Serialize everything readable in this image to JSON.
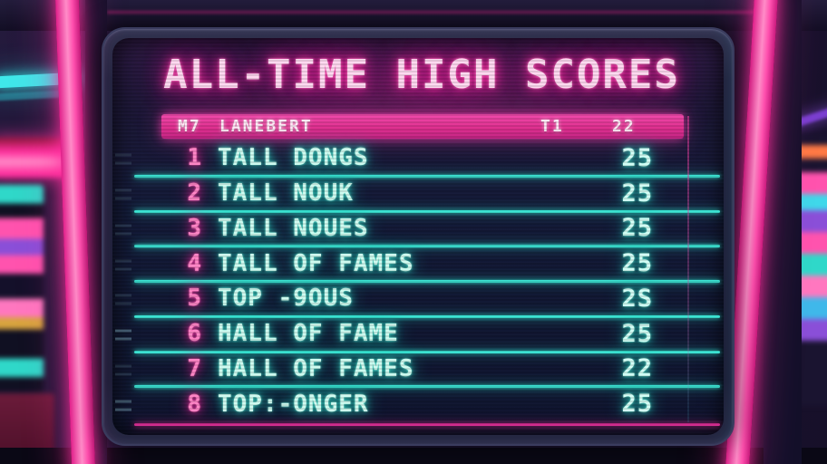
{
  "screen": {
    "title": "ALL-TIME HIGH SCORES",
    "header": {
      "rank_label": "M7",
      "name_label": "LANEBERT",
      "tier_label": "T1",
      "score_label": "22"
    },
    "rows": [
      {
        "rank": "1",
        "name": "TALL DONGS",
        "score": "25"
      },
      {
        "rank": "2",
        "name": "TALL NOUK",
        "score": "25"
      },
      {
        "rank": "3",
        "name": "TALL NOUES",
        "score": "25"
      },
      {
        "rank": "4",
        "name": "TALL OF FAMES",
        "score": "25"
      },
      {
        "rank": "5",
        "name": "TOP -9OUS",
        "score": "2S"
      },
      {
        "rank": "6",
        "name": "HALL OF FAME",
        "score": "25"
      },
      {
        "rank": "7",
        "name": "HALL OF FAMES",
        "score": "22"
      },
      {
        "rank": "8",
        "name": "TOP:-ONGER",
        "score": "25"
      }
    ]
  },
  "colors": {
    "neon_pink": "#ff2f9e",
    "neon_cyan": "#3be2d2",
    "header_bar": "#e0308f",
    "rank_pink": "#ff85c6",
    "screen_bg": "#141a38",
    "magenta_line": "#cf2b8d"
  }
}
